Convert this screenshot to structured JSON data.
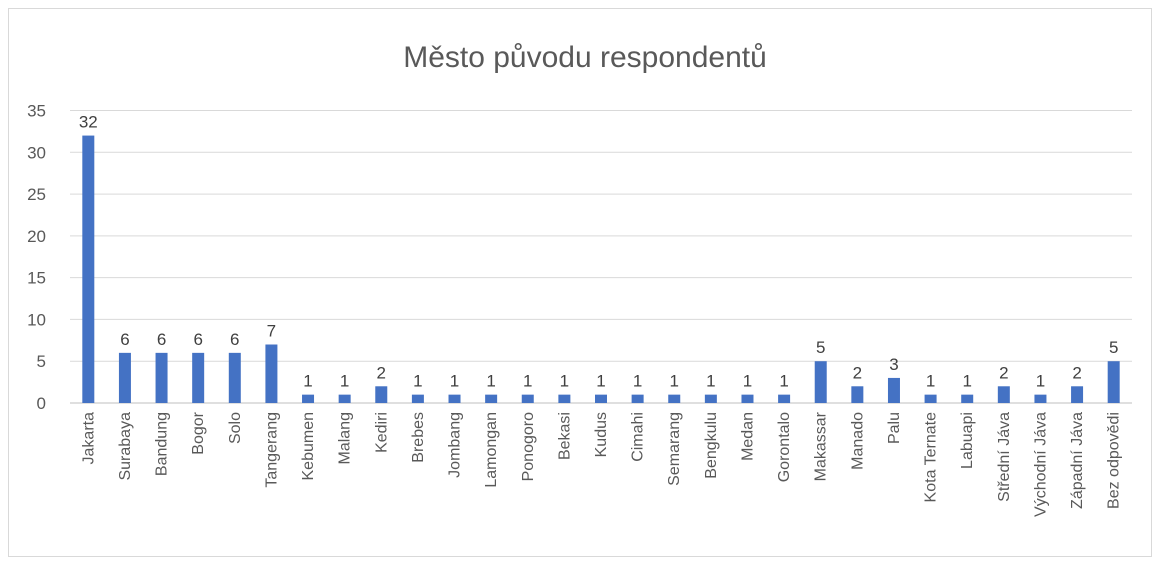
{
  "chart_data": {
    "type": "bar",
    "title": "Město původu respondentů",
    "xlabel": "",
    "ylabel": "",
    "ylim": [
      0,
      35
    ],
    "yticks": [
      0,
      5,
      10,
      15,
      20,
      25,
      30,
      35
    ],
    "grid": true,
    "legend": "none",
    "bar_color": "#4472c4",
    "categories": [
      "Jakarta",
      "Surabaya",
      "Bandung",
      "Bogor",
      "Solo",
      "Tangerang",
      "Kebumen",
      "Malang",
      "Kediri",
      "Brebes",
      "Jombang",
      "Lamongan",
      "Ponogoro",
      "Bekasi",
      "Kudus",
      "Cimahi",
      "Semarang",
      "Bengkulu",
      "Medan",
      "Gorontalo",
      "Makassar",
      "Manado",
      "Palu",
      "Kota Ternate",
      "Labuapi",
      "Střední Jáva",
      "Východní Jáva",
      "Západní Jáva",
      "Bez odpovědi"
    ],
    "values": [
      32,
      6,
      6,
      6,
      6,
      7,
      1,
      1,
      2,
      1,
      1,
      1,
      1,
      1,
      1,
      1,
      1,
      1,
      1,
      1,
      5,
      2,
      3,
      1,
      1,
      2,
      1,
      2,
      5
    ]
  }
}
